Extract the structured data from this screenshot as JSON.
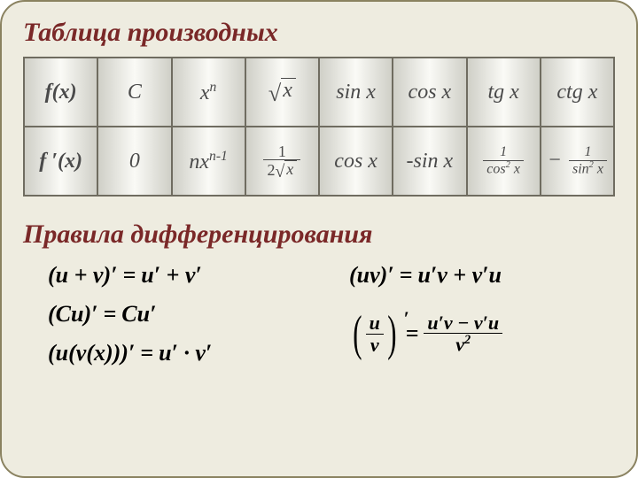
{
  "title": "Таблица производных",
  "subtitle": "Правила дифференцирования",
  "colors": {
    "background": "#eeece0",
    "border": "#8a8260",
    "heading": "#7a2828",
    "cell_text": "#4a4a4a",
    "rules_text": "#000000",
    "cell_gradient_edge": "#cfcfc7",
    "cell_gradient_mid": "#fafaf6",
    "cell_border": "#6f6c60"
  },
  "typography": {
    "heading_fontsize": 30,
    "table_fontsize": 24,
    "rules_fontsize": 26,
    "font_family": "Times New Roman"
  },
  "table": {
    "row1_label": "f(x)",
    "row2_label": "f ′(x)",
    "columns": [
      {
        "fx": "C",
        "fpx": "0"
      },
      {
        "fx_base": "x",
        "fx_sup": "n",
        "fpx_prefix": "nx",
        "fpx_sup": "n-1"
      },
      {
        "fx_sqrt_arg": "x",
        "fpx_frac_num": "1",
        "fpx_frac_den_prefix": "2",
        "fpx_frac_den_sqrt": "x"
      },
      {
        "fx": "sin x",
        "fpx": "cos x"
      },
      {
        "fx": "cos x",
        "fpx": "-sin x"
      },
      {
        "fx": "tg x",
        "fpx_frac_num": "1",
        "fpx_frac_den_base": "cos",
        "fpx_frac_den_sup": "2",
        "fpx_frac_den_arg": "x"
      },
      {
        "fx": "ctg x",
        "fpx_neg": "−",
        "fpx_frac_num": "1",
        "fpx_frac_den_base": "sin",
        "fpx_frac_den_sup": "2",
        "fpx_frac_den_arg": "x"
      }
    ]
  },
  "rules": {
    "r1": {
      "lhs": "(u + v)′",
      "rhs": "u′ + v′"
    },
    "r2": {
      "lhs": "(uv)′",
      "rhs": "u′v + v′u"
    },
    "r3": {
      "lhs": "(Cu)′",
      "rhs": "Cu′"
    },
    "r4": {
      "lhs": "(u(v(x)))′",
      "rhs": "u′ · v′"
    },
    "r5": {
      "frac_num": "u",
      "frac_den": "v",
      "eq": "=",
      "rhs_num": "u′v − v′u",
      "rhs_den_base": "v",
      "rhs_den_sup": "2"
    }
  }
}
